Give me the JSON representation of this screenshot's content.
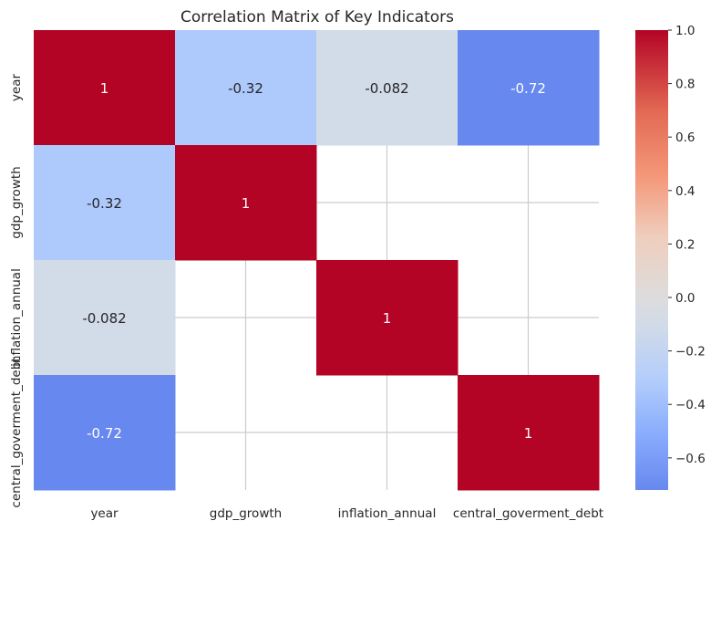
{
  "chart_data": {
    "type": "heatmap",
    "title": "Correlation Matrix of Key Indicators",
    "rows": [
      "year",
      "gdp_growth",
      "inflation_annual",
      "central_goverment_debt"
    ],
    "columns": [
      "year",
      "gdp_growth",
      "inflation_annual",
      "central_goverment_debt"
    ],
    "cells": [
      {
        "row": 0,
        "col": 0,
        "value": 1,
        "label": "1",
        "color": "#b40426"
      },
      {
        "row": 0,
        "col": 1,
        "value": -0.32,
        "label": "-0.32",
        "color": "#aec9fc"
      },
      {
        "row": 0,
        "col": 2,
        "value": -0.082,
        "label": "-0.082",
        "color": "#d2dbe8"
      },
      {
        "row": 0,
        "col": 3,
        "value": -0.72,
        "label": "-0.72",
        "color": "#6788ee"
      },
      {
        "row": 1,
        "col": 0,
        "value": -0.32,
        "label": "-0.32",
        "color": "#aec9fc"
      },
      {
        "row": 1,
        "col": 1,
        "value": 1,
        "label": "1",
        "color": "#b40426"
      },
      {
        "row": 2,
        "col": 0,
        "value": -0.082,
        "label": "-0.082",
        "color": "#d2dbe8"
      },
      {
        "row": 2,
        "col": 2,
        "value": 1,
        "label": "1",
        "color": "#b40426"
      },
      {
        "row": 3,
        "col": 0,
        "value": -0.72,
        "label": "-0.72",
        "color": "#6788ee"
      },
      {
        "row": 3,
        "col": 3,
        "value": 1,
        "label": "1",
        "color": "#b40426"
      }
    ],
    "colorbar": {
      "min": -0.72,
      "max": 1.0,
      "ticks": [
        "1.0",
        "0.8",
        "0.6",
        "0.4",
        "0.2",
        "0.0",
        "−0.2",
        "−0.4",
        "−0.6"
      ],
      "tick_values": [
        1.0,
        0.8,
        0.6,
        0.4,
        0.2,
        0.0,
        -0.2,
        -0.4,
        -0.6
      ],
      "colormap": "coolwarm"
    },
    "grid": true,
    "colors": {
      "grid": "#cccccc",
      "text_dark": "#262626",
      "text_light": "#ffffff"
    }
  }
}
